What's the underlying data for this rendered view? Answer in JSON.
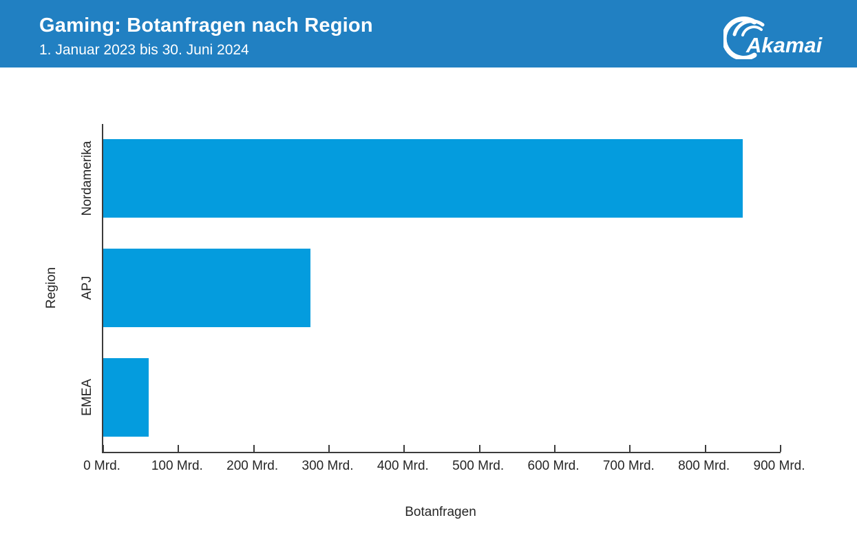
{
  "header": {
    "title": "Gaming: Botanfragen nach Region",
    "subtitle": "1. Januar 2023 bis 30. Juni 2024",
    "logo_text": "Akamai",
    "background_color": "#2180C2"
  },
  "chart_data": {
    "type": "bar",
    "orientation": "horizontal",
    "title": "Gaming: Botanfragen nach Region",
    "subtitle": "1. Januar 2023 bis 30. Juni 2024",
    "categories": [
      "Nordamerika",
      "APJ",
      "EMEA"
    ],
    "values": [
      850,
      275,
      60
    ],
    "value_unit": "Mrd.",
    "xlabel": "Botanfragen",
    "ylabel": "Region",
    "xlim": [
      0,
      900
    ],
    "x_ticks": [
      0,
      100,
      200,
      300,
      400,
      500,
      600,
      700,
      800,
      900
    ],
    "x_tick_labels": [
      "0 Mrd.",
      "100 Mrd.",
      "200 Mrd.",
      "300 Mrd.",
      "400 Mrd.",
      "500 Mrd.",
      "600 Mrd.",
      "700 Mrd.",
      "800 Mrd.",
      "900 Mrd."
    ],
    "bar_color": "#049CDE",
    "axis_color": "#3B3B3B",
    "text_color": "#262626",
    "grid": false,
    "legend": false
  }
}
